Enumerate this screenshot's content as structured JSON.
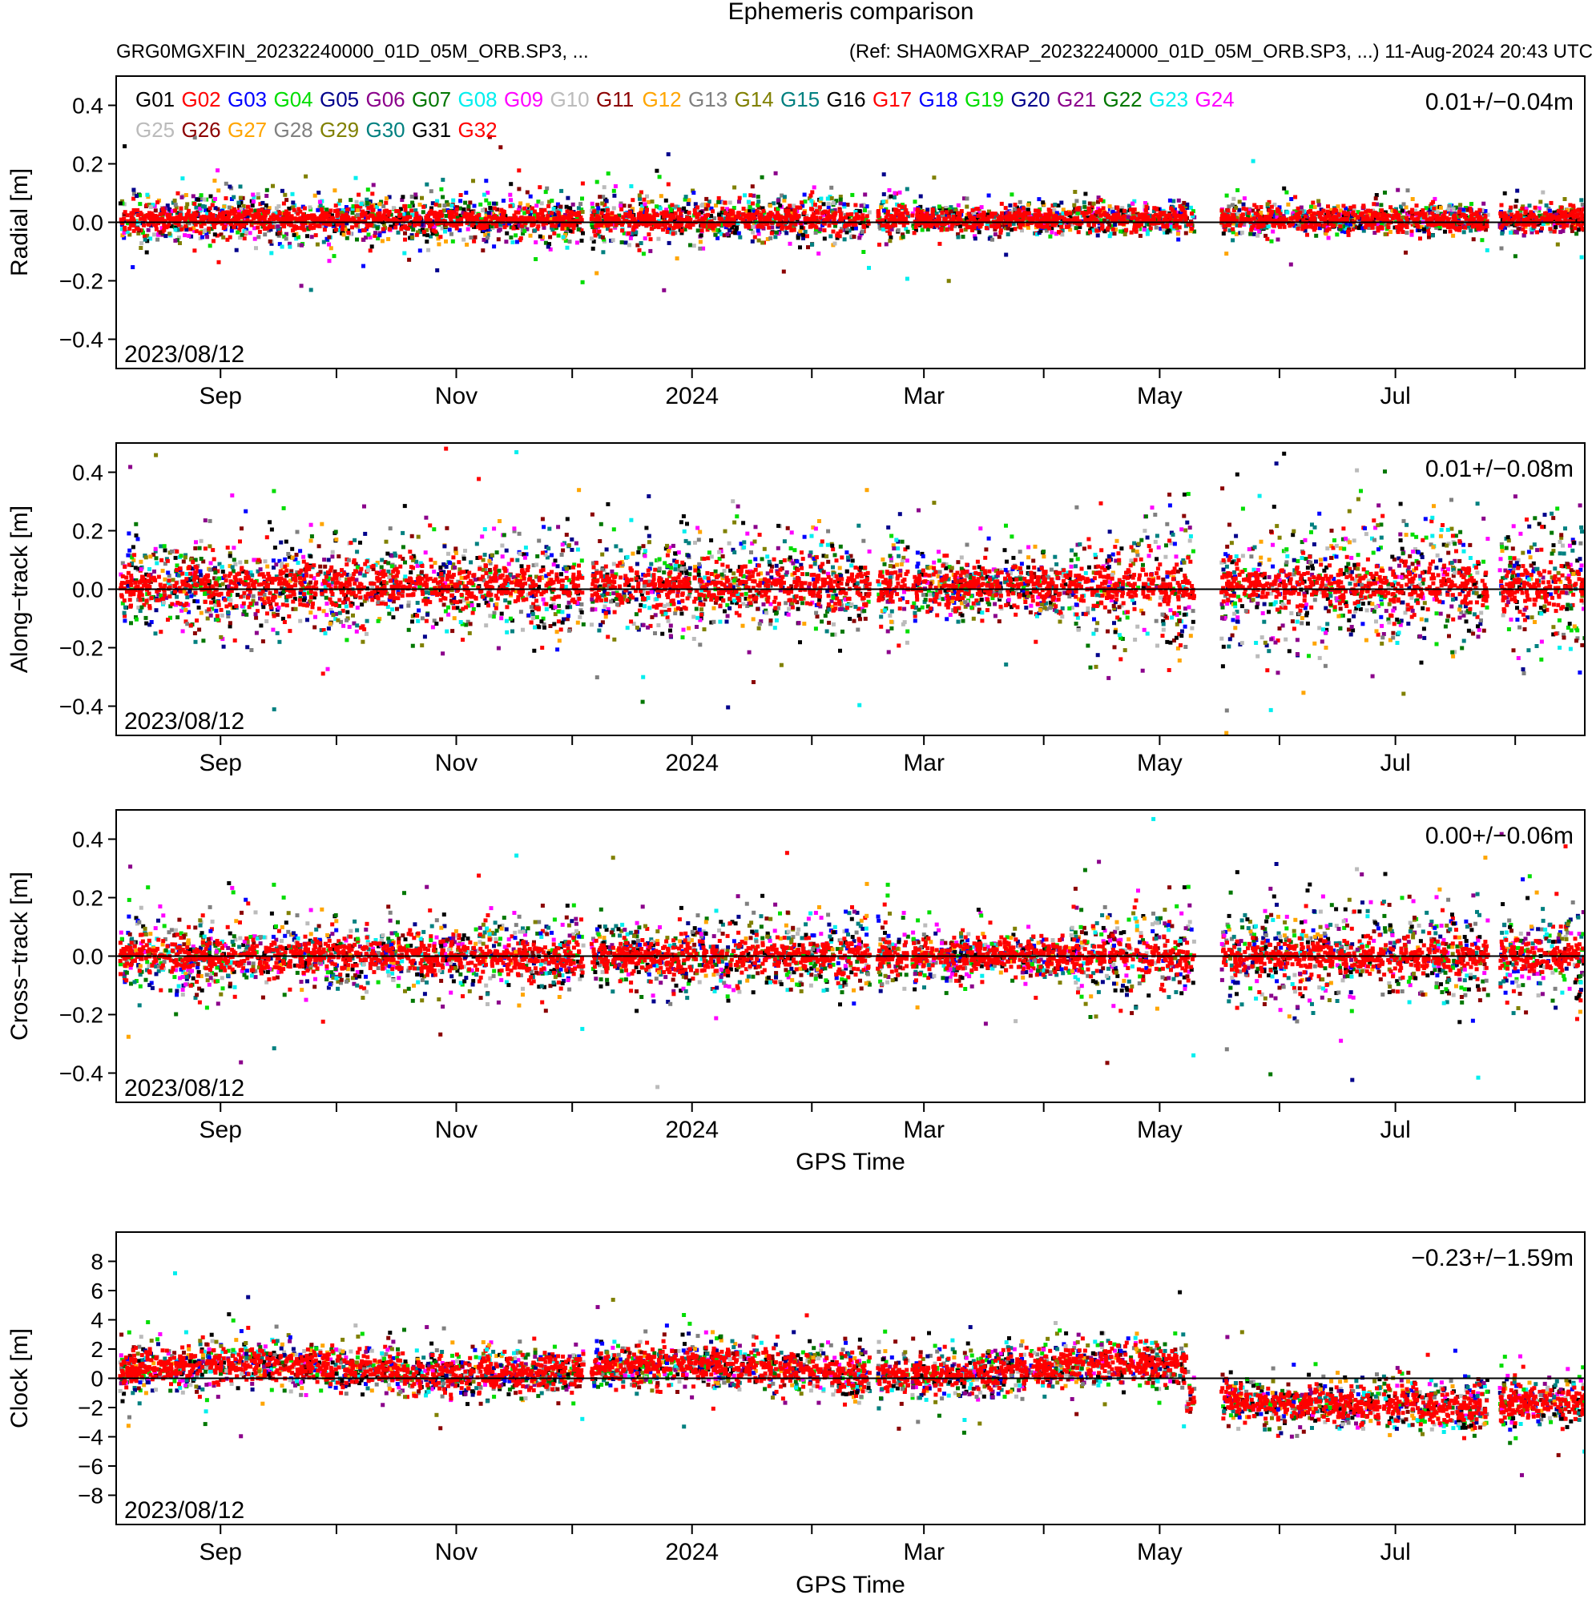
{
  "title": "Ephemeris comparison",
  "subtitle_left": "GRG0MGXFIN_20232240000_01D_05M_ORB.SP3, ...",
  "subtitle_right": "(Ref: SHA0MGXRAP_20232240000_01D_05M_ORB.SP3, ...) 11-Aug-2024 20:43 UTC",
  "xlabel": "GPS Time",
  "start_date_label": "2023/08/12",
  "x_tick_labels": [
    "Sep",
    "Nov",
    "2024",
    "Mar",
    "May",
    "Jul"
  ],
  "legend": [
    {
      "name": "G01",
      "color": "#000000"
    },
    {
      "name": "G02",
      "color": "#ff0000"
    },
    {
      "name": "G03",
      "color": "#0000ff"
    },
    {
      "name": "G04",
      "color": "#00dd00"
    },
    {
      "name": "G05",
      "color": "#00008b"
    },
    {
      "name": "G06",
      "color": "#8b008b"
    },
    {
      "name": "G07",
      "color": "#007700"
    },
    {
      "name": "G08",
      "color": "#00eeee"
    },
    {
      "name": "G09",
      "color": "#ff00ff"
    },
    {
      "name": "G10",
      "color": "#bbbbbb"
    },
    {
      "name": "G11",
      "color": "#8b0000"
    },
    {
      "name": "G12",
      "color": "#ffa500"
    },
    {
      "name": "G13",
      "color": "#808080"
    },
    {
      "name": "G14",
      "color": "#808000"
    },
    {
      "name": "G15",
      "color": "#008080"
    },
    {
      "name": "G16",
      "color": "#000000"
    },
    {
      "name": "G17",
      "color": "#ff0000"
    },
    {
      "name": "G18",
      "color": "#0000ff"
    },
    {
      "name": "G19",
      "color": "#00dd00"
    },
    {
      "name": "G20",
      "color": "#00008b"
    },
    {
      "name": "G21",
      "color": "#8b008b"
    },
    {
      "name": "G22",
      "color": "#007700"
    },
    {
      "name": "G23",
      "color": "#00eeee"
    },
    {
      "name": "G24",
      "color": "#ff00ff"
    },
    {
      "name": "G25",
      "color": "#bbbbbb"
    },
    {
      "name": "G26",
      "color": "#8b0000"
    },
    {
      "name": "G27",
      "color": "#ffa500"
    },
    {
      "name": "G28",
      "color": "#808080"
    },
    {
      "name": "G29",
      "color": "#808000"
    },
    {
      "name": "G30",
      "color": "#008080"
    },
    {
      "name": "G31",
      "color": "#000000"
    },
    {
      "name": "G32",
      "color": "#ff0000"
    }
  ],
  "chart_data": [
    {
      "type": "scatter",
      "ylabel": "Radial [m]",
      "ylim": [
        -0.5,
        0.5
      ],
      "yticks": [
        -0.4,
        -0.2,
        0.0,
        0.2,
        0.4
      ],
      "ytick_labels": [
        "−0.4",
        "−0.2",
        "0.0",
        "0.2",
        "0.4"
      ],
      "stat": "0.01+/−0.04m",
      "mean": 0.01,
      "std": 0.04,
      "show_legend": true,
      "show_xlabel": false
    },
    {
      "type": "scatter",
      "ylabel": "Along−track [m]",
      "ylim": [
        -0.5,
        0.5
      ],
      "yticks": [
        -0.4,
        -0.2,
        0.0,
        0.2,
        0.4
      ],
      "ytick_labels": [
        "−0.4",
        "−0.2",
        "0.0",
        "0.2",
        "0.4"
      ],
      "stat": "0.01+/−0.08m",
      "mean": 0.01,
      "std": 0.08,
      "show_legend": false,
      "show_xlabel": false
    },
    {
      "type": "scatter",
      "ylabel": "Cross−track [m]",
      "ylim": [
        -0.5,
        0.5
      ],
      "yticks": [
        -0.4,
        -0.2,
        0.0,
        0.2,
        0.4
      ],
      "ytick_labels": [
        "−0.4",
        "−0.2",
        "0.0",
        "0.2",
        "0.4"
      ],
      "stat": "0.00+/−0.06m",
      "mean": 0.0,
      "std": 0.06,
      "show_legend": false,
      "show_xlabel": true
    },
    {
      "type": "scatter",
      "ylabel": "Clock [m]",
      "ylim": [
        -10,
        10
      ],
      "yticks": [
        -8,
        -6,
        -4,
        -2,
        0,
        2,
        4,
        6,
        8
      ],
      "ytick_labels": [
        "−8",
        "−6",
        "−4",
        "−2",
        "0",
        "2",
        "4",
        "6",
        "8"
      ],
      "stat": "−0.23+/−1.59m",
      "mean": -0.23,
      "std": 1.59,
      "show_legend": false,
      "show_xlabel": true
    }
  ]
}
